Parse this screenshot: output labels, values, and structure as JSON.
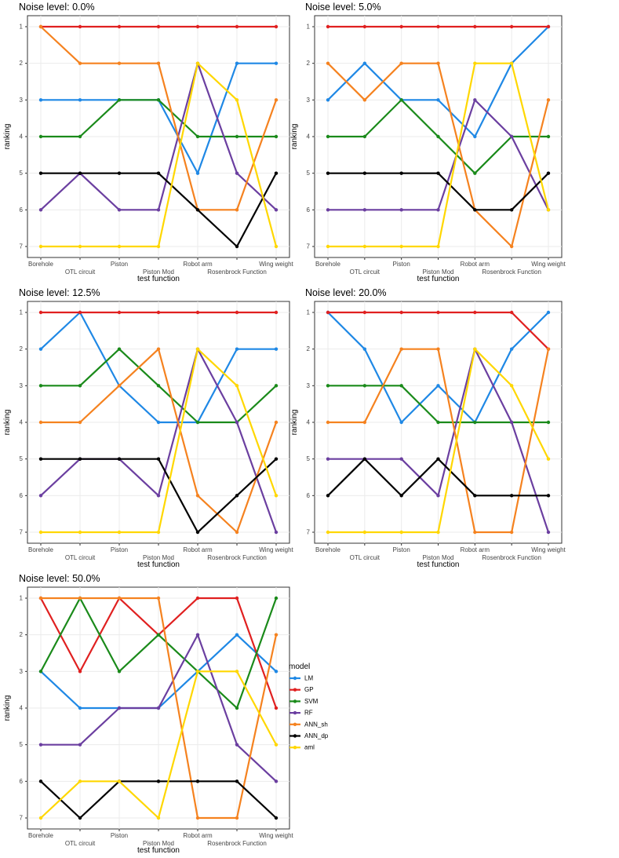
{
  "chart_data": {
    "type": "line",
    "x_categories": [
      "Borehole",
      "OTL circuit",
      "Piston",
      "Piston Mod",
      "Robot arm",
      "Rosenbrock Function",
      "Wing weight"
    ],
    "xlabel": "test function",
    "ylabel": "ranking",
    "y_ticks": [
      1,
      2,
      3,
      4,
      5,
      6,
      7
    ],
    "y_reversed": true,
    "legend": {
      "title": "model",
      "entries": [
        {
          "name": "LM",
          "color": "#1f88e5"
        },
        {
          "name": "GP",
          "color": "#e02020"
        },
        {
          "name": "SVM",
          "color": "#1a8a1a"
        },
        {
          "name": "RF",
          "color": "#6b3fa0"
        },
        {
          "name": "ANN_sh",
          "color": "#f5821f"
        },
        {
          "name": "ANN_dp",
          "color": "#000000"
        },
        {
          "name": "aml",
          "color": "#ffd700"
        }
      ]
    },
    "panels": [
      {
        "title": "Noise level: 0.0%",
        "series": [
          {
            "name": "LM",
            "values": [
              3,
              3,
              3,
              3,
              5,
              2,
              2
            ]
          },
          {
            "name": "GP",
            "values": [
              1,
              1,
              1,
              1,
              1,
              1,
              1
            ]
          },
          {
            "name": "SVM",
            "values": [
              4,
              4,
              3,
              3,
              4,
              4,
              4
            ]
          },
          {
            "name": "RF",
            "values": [
              6,
              5,
              6,
              6,
              2,
              5,
              6
            ]
          },
          {
            "name": "ANN_sh",
            "values": [
              1,
              2,
              2,
              2,
              6,
              6,
              3
            ]
          },
          {
            "name": "ANN_dp",
            "values": [
              5,
              5,
              5,
              5,
              6,
              7,
              5
            ]
          },
          {
            "name": "aml",
            "values": [
              7,
              7,
              7,
              7,
              2,
              3,
              7
            ]
          }
        ]
      },
      {
        "title": "Noise level: 5.0%",
        "series": [
          {
            "name": "LM",
            "values": [
              3,
              2,
              3,
              3,
              4,
              2,
              1
            ]
          },
          {
            "name": "GP",
            "values": [
              1,
              1,
              1,
              1,
              1,
              1,
              1
            ]
          },
          {
            "name": "SVM",
            "values": [
              4,
              4,
              3,
              4,
              5,
              4,
              4
            ]
          },
          {
            "name": "RF",
            "values": [
              6,
              6,
              6,
              6,
              3,
              4,
              6
            ]
          },
          {
            "name": "ANN_sh",
            "values": [
              2,
              3,
              2,
              2,
              6,
              7,
              3
            ]
          },
          {
            "name": "ANN_dp",
            "values": [
              5,
              5,
              5,
              5,
              6,
              6,
              5
            ]
          },
          {
            "name": "aml",
            "values": [
              7,
              7,
              7,
              7,
              2,
              2,
              6
            ]
          }
        ]
      },
      {
        "title": "Noise level: 12.5%",
        "series": [
          {
            "name": "LM",
            "values": [
              2,
              1,
              3,
              4,
              4,
              2,
              2
            ]
          },
          {
            "name": "GP",
            "values": [
              1,
              1,
              1,
              1,
              1,
              1,
              1
            ]
          },
          {
            "name": "SVM",
            "values": [
              3,
              3,
              2,
              3,
              4,
              4,
              3
            ]
          },
          {
            "name": "RF",
            "values": [
              6,
              5,
              5,
              6,
              2,
              4,
              7
            ]
          },
          {
            "name": "ANN_sh",
            "values": [
              4,
              4,
              3,
              2,
              6,
              7,
              4
            ]
          },
          {
            "name": "ANN_dp",
            "values": [
              5,
              5,
              5,
              5,
              7,
              6,
              5
            ]
          },
          {
            "name": "aml",
            "values": [
              7,
              7,
              7,
              7,
              2,
              3,
              6
            ]
          }
        ]
      },
      {
        "title": "Noise level: 20.0%",
        "series": [
          {
            "name": "LM",
            "values": [
              1,
              2,
              4,
              3,
              4,
              2,
              1
            ]
          },
          {
            "name": "GP",
            "values": [
              1,
              1,
              1,
              1,
              1,
              1,
              2
            ]
          },
          {
            "name": "SVM",
            "values": [
              3,
              3,
              3,
              4,
              4,
              4,
              4
            ]
          },
          {
            "name": "RF",
            "values": [
              5,
              5,
              5,
              6,
              2,
              4,
              7
            ]
          },
          {
            "name": "ANN_sh",
            "values": [
              4,
              4,
              2,
              2,
              7,
              7,
              2
            ]
          },
          {
            "name": "ANN_dp",
            "values": [
              6,
              5,
              6,
              5,
              6,
              6,
              6
            ]
          },
          {
            "name": "aml",
            "values": [
              7,
              7,
              7,
              7,
              2,
              3,
              5
            ]
          }
        ]
      },
      {
        "title": "Noise level: 50.0%",
        "series": [
          {
            "name": "LM",
            "values": [
              3,
              4,
              4,
              4,
              3,
              2,
              3
            ]
          },
          {
            "name": "GP",
            "values": [
              1,
              3,
              1,
              2,
              1,
              1,
              4
            ]
          },
          {
            "name": "SVM",
            "values": [
              3,
              1,
              3,
              2,
              3,
              4,
              1
            ]
          },
          {
            "name": "RF",
            "values": [
              5,
              5,
              4,
              4,
              2,
              5,
              6
            ]
          },
          {
            "name": "ANN_sh",
            "values": [
              1,
              1,
              1,
              1,
              7,
              7,
              2
            ]
          },
          {
            "name": "ANN_dp",
            "values": [
              6,
              7,
              6,
              6,
              6,
              6,
              7
            ]
          },
          {
            "name": "aml",
            "values": [
              7,
              6,
              6,
              7,
              3,
              3,
              5
            ]
          }
        ]
      }
    ]
  }
}
